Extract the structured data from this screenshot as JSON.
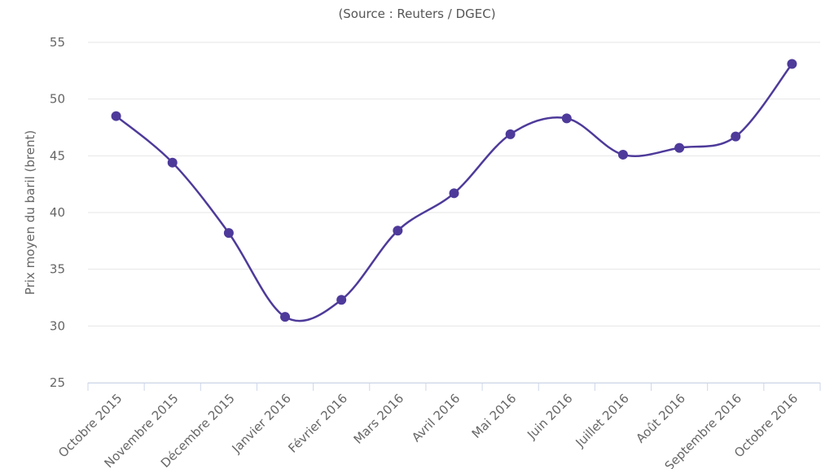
{
  "chart_data": {
    "type": "line",
    "subtitle": "(Source : Reuters / DGEC)",
    "y_label": "Prix moyen du baril (brent)",
    "categories": [
      "Octobre 2015",
      "Novembre 2015",
      "Décembre 2015",
      "Janvier 2016",
      "Février 2016",
      "Mars 2016",
      "Avril 2016",
      "Mai 2016",
      "Juin 2016",
      "Juillet 2016",
      "Août 2016",
      "Septembre 2016",
      "Octobre 2016"
    ],
    "series": [
      {
        "name": "Prix moyen du baril (brent)",
        "color": "#4e3a9a",
        "values": [
          48.5,
          44.4,
          38.2,
          30.8,
          32.3,
          38.4,
          41.7,
          46.9,
          48.3,
          45.1,
          45.7,
          46.7,
          53.1
        ]
      }
    ],
    "ylim": [
      25,
      55
    ],
    "yticks": [
      25,
      30,
      35,
      40,
      45,
      50,
      55
    ],
    "grid": true
  }
}
